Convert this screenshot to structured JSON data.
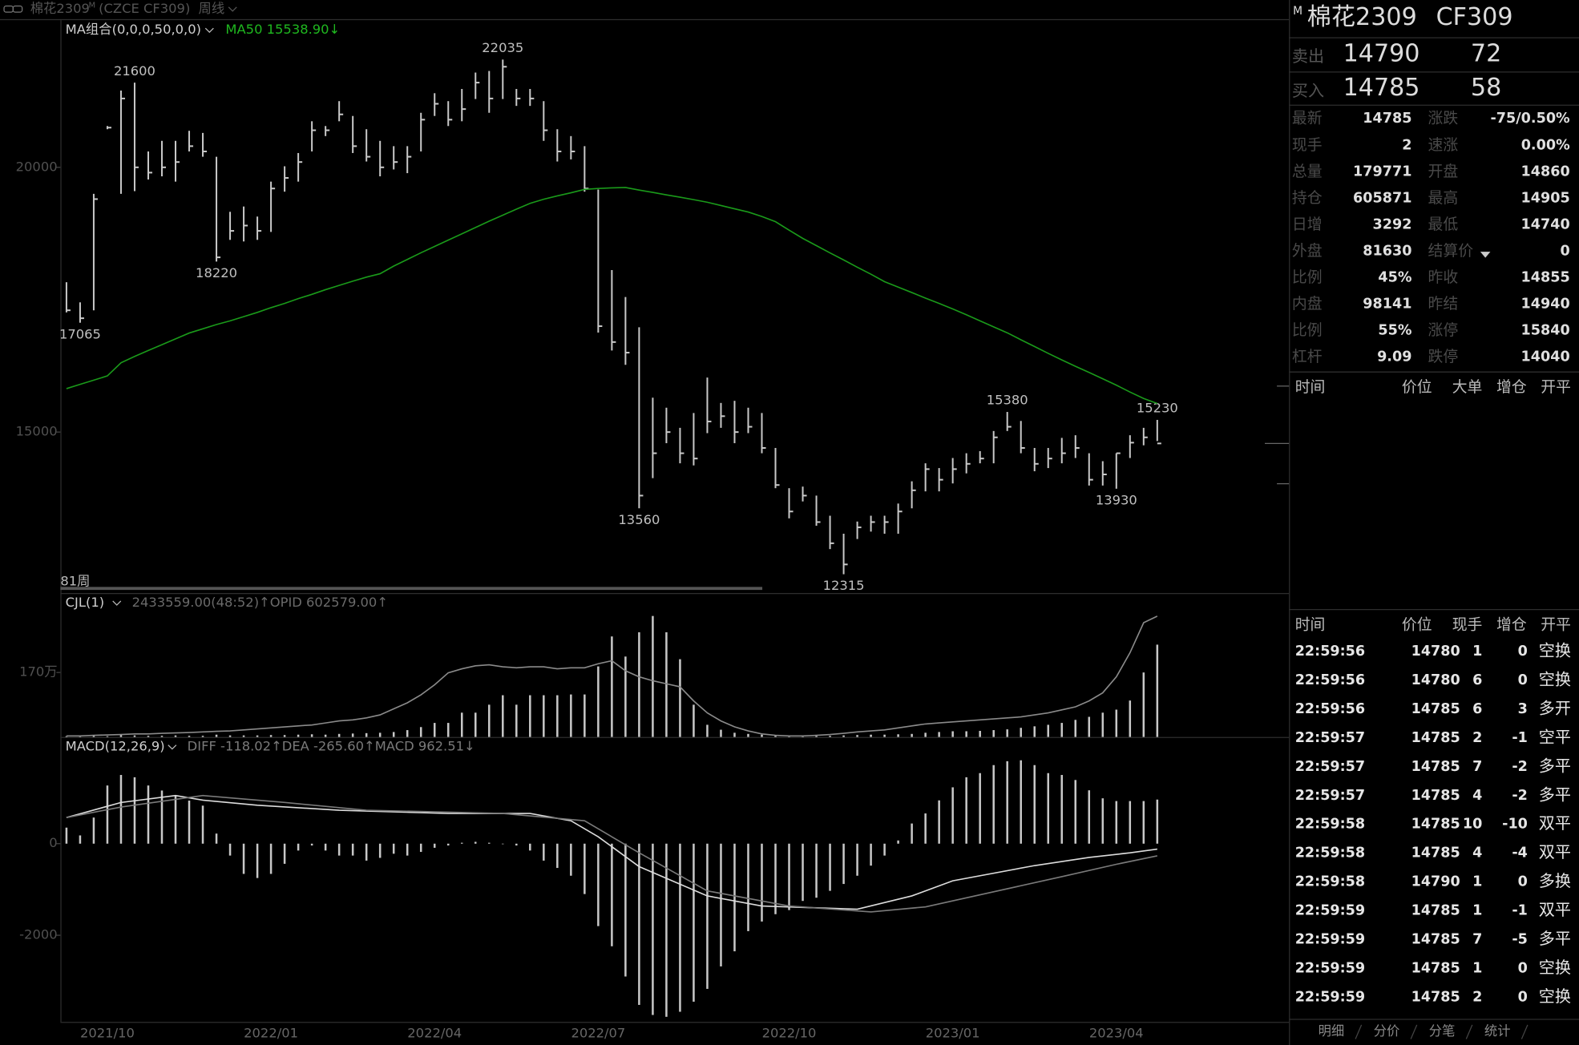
{
  "window": {
    "title": "棉花2309",
    "title_sup": "M",
    "exchange_code": "(CZCE CF309)",
    "period": "周线"
  },
  "chart_data": [
    {
      "type": "ohlc",
      "indicator": "MA组合(0,0,0,50,0,0)",
      "readout": "MA50 15538.90↓",
      "readout_color": "#1fb81f",
      "bar_count_label": "81周",
      "color": "#c8c8c8",
      "grid": false,
      "ylim": [
        11980,
        22780
      ],
      "yticks": [
        15000,
        20000
      ],
      "high": [
        17830,
        17450,
        19500,
        20780,
        21450,
        21600,
        20300,
        20500,
        20500,
        20690,
        20650,
        20200,
        19160,
        19260,
        19070,
        19730,
        20020,
        20270,
        20870,
        20780,
        21250,
        20970,
        20720,
        20500,
        20400,
        20400,
        21030,
        21400,
        21250,
        21480,
        21790,
        21820,
        22035,
        21480,
        21480,
        21250,
        20720,
        20590,
        20400,
        19580,
        18060,
        17550,
        16980,
        15650,
        15460,
        15080,
        15360,
        16030,
        15550,
        15590,
        15460,
        15360,
        14700,
        13940,
        13970,
        13800,
        13420,
        13080,
        13310,
        13420,
        13420,
        13650,
        14070,
        14410,
        14320,
        14510,
        14600,
        14640,
        15020,
        15380,
        15210,
        14700,
        14700,
        14890,
        14940,
        14600,
        14450,
        14600,
        14940,
        15080,
        15230
      ],
      "low": [
        17260,
        17065,
        17300,
        20720,
        19500,
        19550,
        19770,
        19830,
        19730,
        20300,
        20200,
        18220,
        18630,
        18600,
        18630,
        18780,
        19540,
        19730,
        20300,
        20590,
        20870,
        20270,
        20110,
        19830,
        19960,
        19890,
        20300,
        20970,
        20780,
        20870,
        21290,
        21030,
        21290,
        21160,
        21160,
        20500,
        20110,
        20150,
        19540,
        16880,
        16540,
        16270,
        13560,
        14130,
        14790,
        14410,
        14370,
        14980,
        15080,
        14790,
        14980,
        14600,
        13940,
        13370,
        13690,
        13230,
        12790,
        12315,
        12980,
        13120,
        13080,
        13080,
        13560,
        13880,
        13880,
        14030,
        14220,
        14410,
        14410,
        15020,
        14600,
        14260,
        14320,
        14410,
        14510,
        13990,
        13990,
        13930,
        14510,
        14750,
        14830
      ],
      "close": [
        17300,
        17150,
        19400,
        20750,
        21300,
        20000,
        19900,
        20000,
        20100,
        20400,
        20300,
        18300,
        18800,
        18900,
        18800,
        19600,
        19800,
        20100,
        20700,
        20700,
        21000,
        20400,
        20200,
        20000,
        20100,
        20200,
        20900,
        21200,
        20900,
        21100,
        21600,
        21300,
        21900,
        21300,
        21300,
        20700,
        20300,
        20300,
        19600,
        17000,
        16700,
        16500,
        13800,
        14600,
        15000,
        14600,
        14500,
        15200,
        15300,
        15000,
        15100,
        14700,
        14000,
        13500,
        13800,
        13300,
        12900,
        12500,
        13200,
        13300,
        13300,
        13500,
        13900,
        14300,
        14100,
        14300,
        14400,
        14500,
        14900,
        15100,
        14700,
        14400,
        14500,
        14600,
        14700,
        14100,
        14200,
        14600,
        14800,
        14900,
        14785
      ],
      "marked_highs": [
        5,
        32,
        69,
        80
      ],
      "marked_lows": [
        1,
        11,
        42,
        57,
        77
      ],
      "series": [
        {
          "color": "#1a9a1a",
          "values": [
            15820,
            15900,
            15980,
            16060,
            16310,
            16430,
            16540,
            16650,
            16760,
            16870,
            16950,
            17030,
            17100,
            17180,
            17260,
            17350,
            17430,
            17520,
            17600,
            17690,
            17770,
            17850,
            17925,
            17990,
            18134,
            18260,
            18385,
            18506,
            18625,
            18746,
            18864,
            18983,
            19097,
            19210,
            19320,
            19398,
            19460,
            19520,
            19583,
            19600,
            19612,
            19619,
            19570,
            19526,
            19480,
            19436,
            19390,
            19341,
            19280,
            19217,
            19155,
            19072,
            18973,
            18813,
            18658,
            18521,
            18384,
            18251,
            18113,
            17981,
            17841,
            17737,
            17634,
            17530,
            17429,
            17324,
            17216,
            17100,
            16987,
            16874,
            16743,
            16616,
            16487,
            16363,
            16242,
            16127,
            16007,
            15886,
            15757,
            15634,
            15538.9
          ]
        }
      ]
    },
    {
      "type": "bar",
      "indicator": "CJL(1)",
      "readout": "2433559.00(48:52)↑OPID 602579.00↑",
      "color": "#c8c8c8",
      "grid": false,
      "ylim": [
        0,
        3770000
      ],
      "yticks": [
        {
          "value": 1700000,
          "label": "170万"
        }
      ],
      "y2lim": [
        0,
        713000
      ],
      "values": [
        20000,
        30000,
        40000,
        20000,
        50000,
        40000,
        30000,
        30000,
        40000,
        30000,
        30000,
        60000,
        40000,
        40000,
        40000,
        50000,
        50000,
        60000,
        70000,
        60000,
        80000,
        90000,
        100000,
        110000,
        130000,
        180000,
        260000,
        370000,
        370000,
        640000,
        640000,
        850000,
        1100000,
        850000,
        1100000,
        1100000,
        1100000,
        1120000,
        1120000,
        1860000,
        2650000,
        2120000,
        2760000,
        3190000,
        2760000,
        2050000,
        850000,
        320000,
        190000,
        110000,
        80000,
        60000,
        50000,
        40000,
        30000,
        30000,
        30000,
        40000,
        50000,
        60000,
        60000,
        70000,
        80000,
        110000,
        130000,
        150000,
        150000,
        160000,
        180000,
        200000,
        240000,
        280000,
        320000,
        370000,
        450000,
        530000,
        640000,
        720000,
        960000,
        1700000,
        2433559
      ],
      "series": [
        {
          "color": "#8a8a8a",
          "axis": "y2",
          "values": [
            5000,
            5000,
            8000,
            10000,
            12000,
            15000,
            15000,
            18000,
            20000,
            22000,
            25000,
            28000,
            30000,
            35000,
            40000,
            45000,
            50000,
            55000,
            60000,
            70000,
            80000,
            85000,
            95000,
            110000,
            140000,
            170000,
            210000,
            260000,
            320000,
            340000,
            355000,
            360000,
            350000,
            345000,
            350000,
            350000,
            340000,
            345000,
            345000,
            365000,
            380000,
            330000,
            300000,
            280000,
            265000,
            250000,
            180000,
            120000,
            80000,
            50000,
            30000,
            15000,
            8000,
            5000,
            5000,
            8000,
            12000,
            18000,
            25000,
            30000,
            35000,
            45000,
            55000,
            65000,
            70000,
            75000,
            80000,
            85000,
            90000,
            95000,
            100000,
            110000,
            120000,
            135000,
            150000,
            180000,
            220000,
            300000,
            420000,
            570000,
            602579
          ]
        }
      ]
    },
    {
      "type": "bar",
      "indicator": "MACD(12,26,9)",
      "readout": "DIFF -118.02↑DEA -265.60↑MACD 962.51↓",
      "color": "#c8c8c8",
      "grid": false,
      "ylim": [
        -3890,
        2264
      ],
      "yticks": [
        -2000,
        0
      ],
      "categories": [
        null,
        null,
        null,
        "2021/10",
        null,
        null,
        null,
        null,
        null,
        null,
        null,
        null,
        null,
        null,
        null,
        "2022/01",
        null,
        null,
        null,
        null,
        null,
        null,
        null,
        null,
        null,
        null,
        null,
        "2022/04",
        null,
        null,
        null,
        null,
        null,
        null,
        null,
        null,
        null,
        null,
        null,
        "2022/07",
        null,
        null,
        null,
        null,
        null,
        null,
        null,
        null,
        null,
        null,
        null,
        null,
        null,
        "2022/10",
        null,
        null,
        null,
        null,
        null,
        null,
        null,
        null,
        null,
        null,
        null,
        "2023/01",
        null,
        null,
        null,
        null,
        null,
        null,
        null,
        null,
        null,
        null,
        null,
        "2023/04",
        null,
        null,
        null
      ],
      "values": [
        350,
        180,
        570,
        1270,
        1500,
        1450,
        1270,
        1160,
        1050,
        940,
        830,
        220,
        -260,
        -660,
        -750,
        -660,
        -440,
        -150,
        -40,
        -150,
        -260,
        -260,
        -370,
        -310,
        -220,
        -260,
        -180,
        -90,
        -40,
        20,
        40,
        20,
        -10,
        -40,
        -150,
        -370,
        -530,
        -700,
        -1100,
        -1800,
        -2240,
        -2900,
        -3520,
        -3740,
        -3780,
        -3670,
        -3450,
        -3170,
        -2680,
        -2350,
        -1910,
        -1700,
        -1540,
        -1450,
        -1250,
        -1180,
        -1030,
        -880,
        -700,
        -480,
        -260,
        70,
        440,
        660,
        945,
        1230,
        1450,
        1540,
        1715,
        1800,
        1820,
        1715,
        1540,
        1500,
        1390,
        1165,
        990,
        930,
        930,
        930,
        962.51
      ],
      "series": [
        {
          "color": "#dcdcdc",
          "x": [
            0,
            4,
            8,
            10,
            14,
            20,
            28,
            34,
            37,
            39,
            42,
            47,
            51,
            58,
            62,
            65,
            71,
            75,
            78,
            80
          ],
          "values": [
            570,
            900,
            1050,
            950,
            840,
            730,
            660,
            660,
            500,
            150,
            -500,
            -1140,
            -1360,
            -1430,
            -1140,
            -810,
            -480,
            -300,
            -200,
            -118.02
          ]
        },
        {
          "color": "#7a7a7a",
          "x": [
            0,
            4,
            10,
            16,
            22,
            32,
            38,
            42,
            47,
            53,
            59,
            63,
            68,
            73,
            77,
            80
          ],
          "values": [
            570,
            800,
            1050,
            900,
            730,
            660,
            500,
            -200,
            -1030,
            -1360,
            -1490,
            -1380,
            -1050,
            -720,
            -450,
            -265.6
          ]
        }
      ]
    }
  ],
  "quote_panel": {
    "title_sup": "M",
    "title": "棉花2309",
    "code": "CF309",
    "ask": {
      "label": "卖出",
      "price": 14790,
      "volume": 72
    },
    "bid": {
      "label": "买入",
      "price": 14785,
      "volume": 58
    },
    "rows": [
      [
        "最新",
        14785,
        "涨跌",
        "-75/0.50%"
      ],
      [
        "现手",
        2,
        "速涨",
        "0.00%"
      ],
      [
        "总量",
        179771,
        "开盘",
        14860
      ],
      [
        "持仓",
        605871,
        "最高",
        14905
      ],
      [
        "日增",
        3292,
        "最低",
        14740
      ],
      [
        "外盘",
        81630,
        "结算价",
        0
      ],
      [
        "比例",
        "45%",
        "昨收",
        14855
      ],
      [
        "内盘",
        98141,
        "昨结",
        14940
      ],
      [
        "比例",
        "55%",
        "涨停",
        15840
      ],
      [
        "杠杆",
        9.09,
        "跌停",
        14040
      ]
    ]
  },
  "big_orders": {
    "columns": [
      "时间",
      "价位",
      "大单",
      "增仓",
      "开平"
    ]
  },
  "trades": {
    "columns": [
      "时间",
      "价位",
      "现手",
      "增仓",
      "开平"
    ],
    "rows": [
      [
        "22:59:56",
        14780,
        1,
        0,
        "空换"
      ],
      [
        "22:59:56",
        14780,
        6,
        0,
        "空换"
      ],
      [
        "22:59:56",
        14785,
        6,
        3,
        "多开"
      ],
      [
        "22:59:57",
        14785,
        2,
        -1,
        "空平"
      ],
      [
        "22:59:57",
        14785,
        7,
        -2,
        "多平"
      ],
      [
        "22:59:57",
        14785,
        4,
        -2,
        "多平"
      ],
      [
        "22:59:58",
        14785,
        10,
        -10,
        "双平"
      ],
      [
        "22:59:58",
        14785,
        4,
        -4,
        "双平"
      ],
      [
        "22:59:58",
        14790,
        1,
        0,
        "多换"
      ],
      [
        "22:59:59",
        14785,
        1,
        -1,
        "双平"
      ],
      [
        "22:59:59",
        14785,
        7,
        -5,
        "多平"
      ],
      [
        "22:59:59",
        14785,
        1,
        0,
        "空换"
      ],
      [
        "22:59:59",
        14785,
        2,
        0,
        "空换"
      ]
    ]
  },
  "tabs": [
    "明细",
    "分价",
    "分笔",
    "统计"
  ]
}
